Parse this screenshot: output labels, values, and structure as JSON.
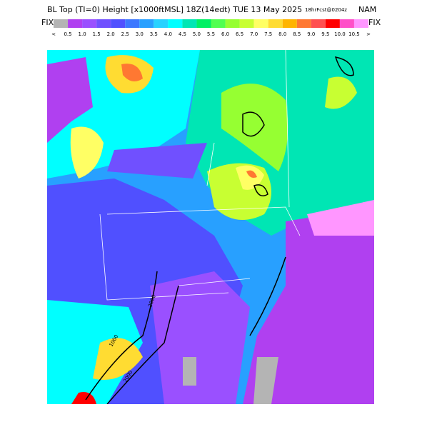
{
  "header": {
    "title": "BL Top (TI=0) Height [x1000ftMSL] 18Z(14edt) TUE 13 May 2025",
    "forecast": "18hrFcst@0204z",
    "model": "NAM",
    "left_label": "FIX",
    "right_label": "FIX"
  },
  "colorbar": {
    "labels": [
      "<",
      "0.5",
      "1.0",
      "1.5",
      "2.0",
      "2.5",
      "3.0",
      "3.5",
      "4.0",
      "4.5",
      "5.0",
      "5.5",
      "6.0",
      "6.5",
      "7.0",
      "7.5",
      "8.0",
      "8.5",
      "9.0",
      "9.5",
      "10.0",
      "10.5",
      ">"
    ],
    "colors": [
      "#b4b4b4",
      "#b040f0",
      "#9a50ff",
      "#7050ff",
      "#5050ff",
      "#3c78ff",
      "#28a0ff",
      "#28d2ff",
      "#00ffff",
      "#00e6b4",
      "#00f064",
      "#50ff50",
      "#96ff32",
      "#c8ff32",
      "#ffff64",
      "#ffdc32",
      "#ffb400",
      "#ff7832",
      "#ff5050",
      "#ff0000",
      "#ff50c8",
      "#ff96ff"
    ]
  },
  "map": {
    "contour_labels": [
      "1000",
      "2000",
      "2000"
    ]
  }
}
